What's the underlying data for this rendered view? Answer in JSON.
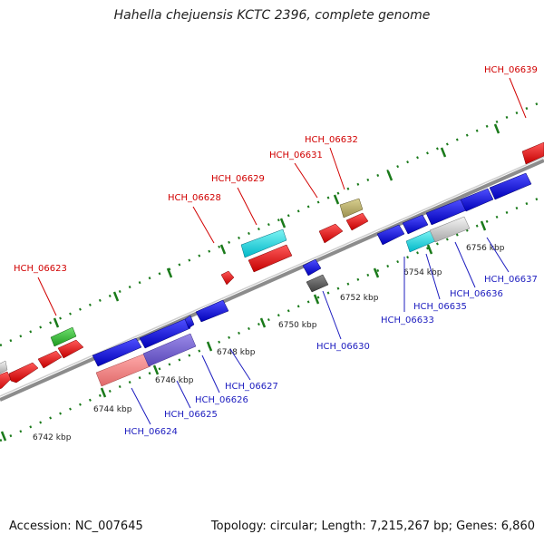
{
  "title": "Hahella chejuensis KCTC 2396, complete genome",
  "footer": {
    "accession": "Accession: NC_007645",
    "summary": "Topology: circular; Length: 7,215,267 bp; Genes: 6,860"
  },
  "colors": {
    "backbone": "#8c8c8c",
    "tick": "#1a7a1a",
    "label_top": "#d10000",
    "label_bottom": "#1c1cbf"
  },
  "scale_labels": [
    "6742 kbp",
    "6744 kbp",
    "6746 kbp",
    "6748 kbp",
    "6750 kbp",
    "6752 kbp",
    "6754 kbp",
    "6756 kbp"
  ],
  "gene_labels_top": [
    "HCH_06623",
    "HCH_06628",
    "HCH_06629",
    "HCH_06631",
    "HCH_06632",
    "HCH_06639"
  ],
  "gene_labels_bottom": [
    "HCH_06624",
    "HCH_06625",
    "HCH_06626",
    "HCH_06627",
    "HCH_06630",
    "HCH_06633",
    "HCH_06635",
    "HCH_06636",
    "HCH_06637"
  ]
}
